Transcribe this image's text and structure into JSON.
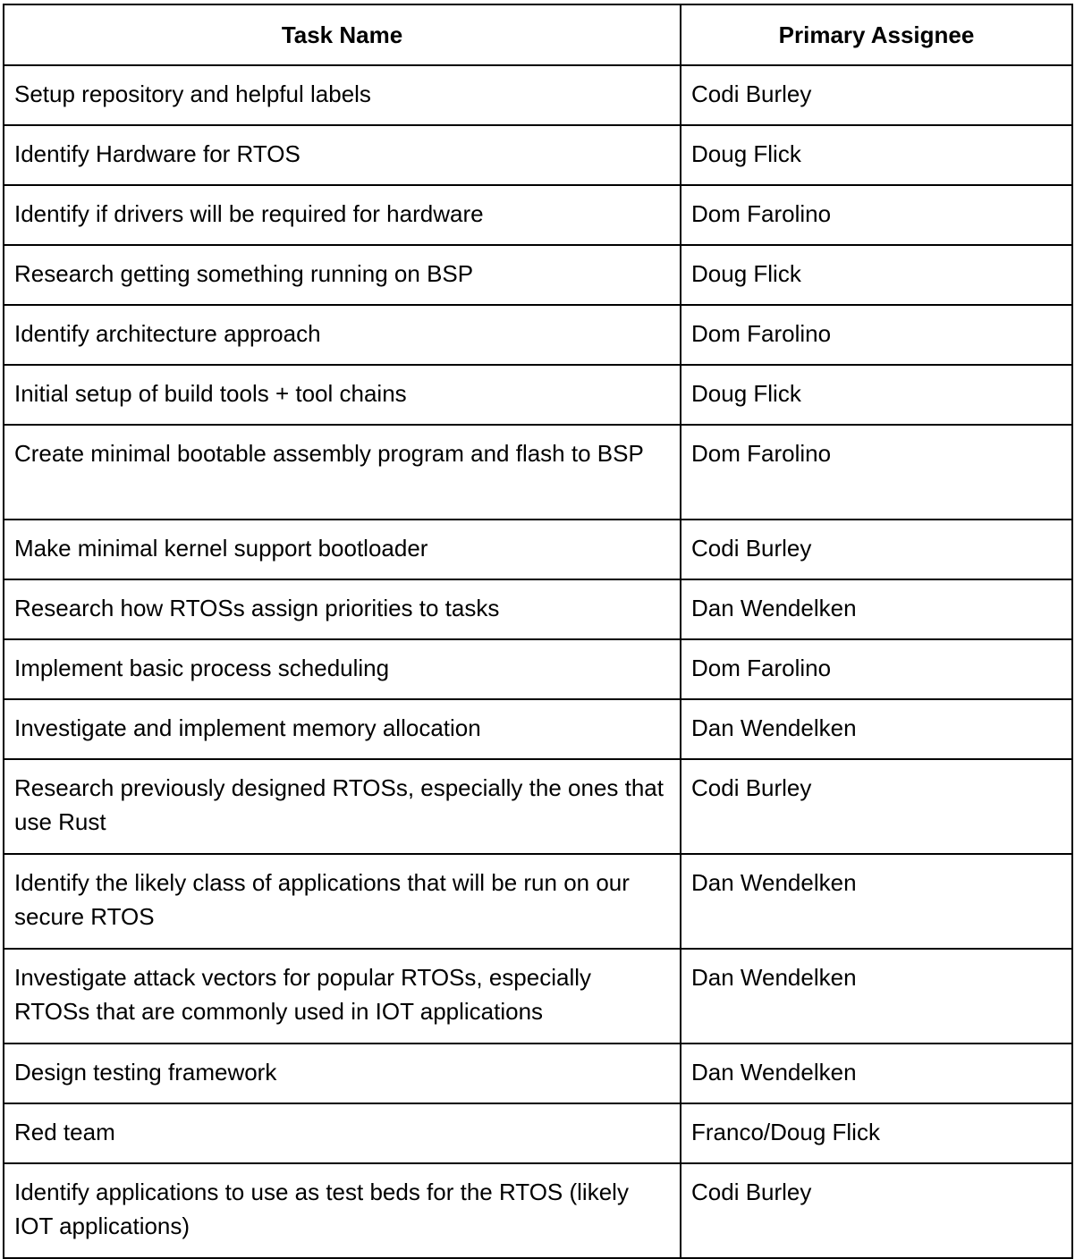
{
  "table": {
    "headers": {
      "task": "Task Name",
      "assignee": "Primary Assignee"
    },
    "rows": [
      {
        "task": "Setup repository and helpful labels",
        "assignee": "Codi Burley"
      },
      {
        "task": "Identify Hardware for RTOS",
        "assignee": "Doug Flick"
      },
      {
        "task": "Identify if drivers will be required for hardware",
        "assignee": "Dom Farolino"
      },
      {
        "task": "Research getting something running on BSP",
        "assignee": "Doug Flick"
      },
      {
        "task": "Identify architecture approach",
        "assignee": "Dom Farolino"
      },
      {
        "task": "Initial setup of build tools + tool chains",
        "assignee": "Doug Flick"
      },
      {
        "task": "Create minimal bootable assembly program and flash to BSP",
        "assignee": "Dom Farolino"
      },
      {
        "task": "Make minimal kernel support bootloader",
        "assignee": "Codi Burley"
      },
      {
        "task": "Research how RTOSs assign priorities to tasks",
        "assignee": "Dan Wendelken"
      },
      {
        "task": "Implement basic process scheduling",
        "assignee": "Dom Farolino"
      },
      {
        "task": "Investigate and implement memory allocation",
        "assignee": "Dan Wendelken"
      },
      {
        "task": "Research previously designed RTOSs, especially the ones that use Rust",
        "assignee": "Codi Burley"
      },
      {
        "task": "Identify the likely class of applications that will be run on our secure RTOS",
        "assignee": "Dan Wendelken"
      },
      {
        "task": "Investigate attack vectors for popular RTOSs, especially RTOSs that are commonly used in IOT applications",
        "assignee": "Dan Wendelken"
      },
      {
        "task": "Design testing framework",
        "assignee": "Dan Wendelken"
      },
      {
        "task": "Red team",
        "assignee": "Franco/Doug Flick"
      },
      {
        "task": "Identify applications to use as test beds for the RTOS (likely IOT applications)",
        "assignee": "Codi Burley"
      }
    ]
  }
}
